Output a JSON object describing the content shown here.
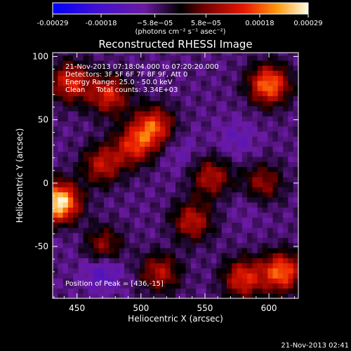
{
  "chart_data": {
    "type": "heatmap",
    "title": "Reconstructed RHESSI Image",
    "xlabel": "Heliocentric X (arcsec)",
    "ylabel": "Heliocentric Y (arcsec)",
    "xlim": [
      431,
      623
    ],
    "ylim": [
      -91,
      103
    ],
    "x_ticks": [
      450,
      500,
      550,
      600
    ],
    "y_ticks": [
      -50,
      0,
      50,
      100
    ],
    "colorbar": {
      "label": "(photons cm⁻² s⁻¹ asec⁻²)",
      "range": [
        -0.00029,
        0.00029
      ],
      "tick_values": [
        -0.00029,
        -0.00018,
        -5.8e-05,
        5.8e-05,
        0.00018,
        0.00029
      ],
      "tick_labels": [
        "-0.00029",
        "-0.00018",
        "−5.8e−05",
        "5.8e−05",
        "0.00018",
        "0.00029"
      ]
    },
    "annotations": [
      "21-Nov-2013 07:18:04.000 to 07:20:20.000",
      "Detectors: 3F 5F 6F 7F 8F 9F, Att 0",
      "Energy Range: 25.0 - 50.0 keV",
      "Clean     Total counts: 3.34E+03"
    ],
    "peak_label": "Position of Peak = [436,-15]",
    "peak": [
      436,
      -15
    ],
    "bright_regions": [
      {
        "x": 436,
        "y": -15,
        "value": 0.00029
      },
      {
        "x": 600,
        "y": 78,
        "value": 0.0002
      },
      {
        "x": 445,
        "y": 80,
        "value": 0.00014
      },
      {
        "x": 475,
        "y": 70,
        "value": 0.00013
      },
      {
        "x": 510,
        "y": 45,
        "value": 0.00016
      },
      {
        "x": 495,
        "y": 30,
        "value": 0.00013
      },
      {
        "x": 470,
        "y": 15,
        "value": 0.00011
      },
      {
        "x": 555,
        "y": 5,
        "value": 0.0001
      },
      {
        "x": 595,
        "y": 0,
        "value": 8e-05
      },
      {
        "x": 540,
        "y": -30,
        "value": 0.00011
      },
      {
        "x": 470,
        "y": -50,
        "value": 9e-05
      },
      {
        "x": 515,
        "y": -70,
        "value": 0.0001
      },
      {
        "x": 580,
        "y": -75,
        "value": 0.00014
      },
      {
        "x": 610,
        "y": -70,
        "value": 0.00019
      }
    ],
    "dark_regions": [
      {
        "x": 470,
        "y": -68,
        "value": -0.00016
      },
      {
        "x": 575,
        "y": 35,
        "value": -0.00011
      },
      {
        "x": 530,
        "y": 25,
        "value": -0.0001
      },
      {
        "x": 450,
        "y": -45,
        "value": -8e-05
      },
      {
        "x": 520,
        "y": -50,
        "value": -7e-05
      },
      {
        "x": 585,
        "y": -15,
        "value": -9e-05
      }
    ],
    "background_value": -6e-05
  },
  "footer": {
    "timestamp": "21-Nov-2013 02:41"
  }
}
